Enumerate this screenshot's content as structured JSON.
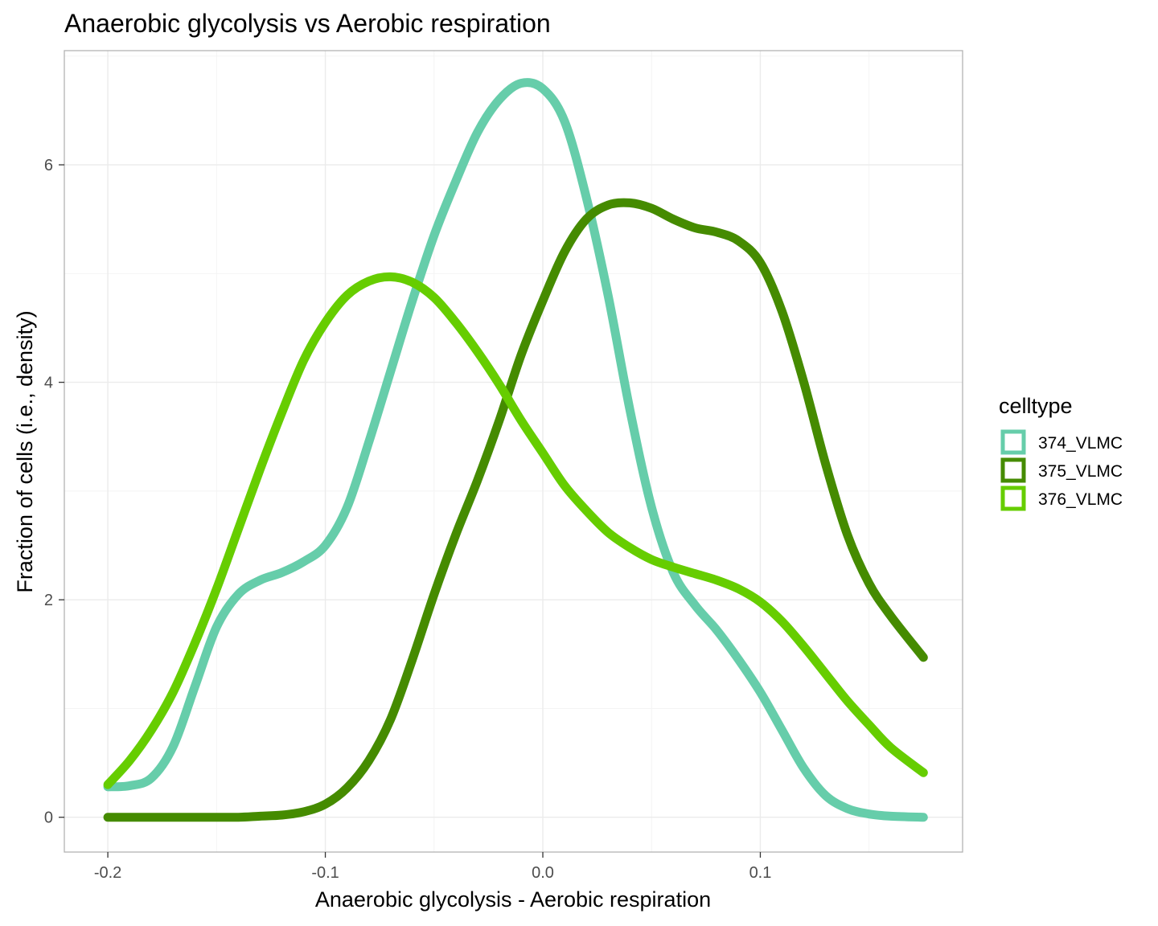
{
  "chart_data": {
    "type": "line",
    "title": "Anaerobic glycolysis vs Aerobic respiration",
    "xlabel": "Anaerobic glycolysis - Aerobic respiration",
    "ylabel": "Fraction of cells (i.e., density)",
    "xlim": [
      -0.22,
      0.193
    ],
    "ylim": [
      -0.32,
      7.05
    ],
    "x_ticks": [
      -0.2,
      -0.1,
      0.0,
      0.1
    ],
    "x_tick_labels": [
      "-0.2",
      "-0.1",
      "0.0",
      "0.1"
    ],
    "y_ticks": [
      0,
      2,
      4,
      6
    ],
    "y_tick_labels": [
      "0",
      "2",
      "4",
      "6"
    ],
    "grid": true,
    "legend": {
      "title": "celltype",
      "position": "right"
    },
    "series": [
      {
        "name": "374_VLMC",
        "color": "#66cdaa",
        "x": [
          -0.2,
          -0.19,
          -0.18,
          -0.17,
          -0.16,
          -0.15,
          -0.14,
          -0.13,
          -0.12,
          -0.11,
          -0.1,
          -0.09,
          -0.08,
          -0.07,
          -0.06,
          -0.05,
          -0.04,
          -0.03,
          -0.02,
          -0.01,
          0.0,
          0.01,
          0.02,
          0.03,
          0.04,
          0.05,
          0.06,
          0.07,
          0.08,
          0.09,
          0.1,
          0.11,
          0.12,
          0.13,
          0.14,
          0.15,
          0.16,
          0.175
        ],
        "y": [
          0.28,
          0.29,
          0.36,
          0.65,
          1.2,
          1.75,
          2.05,
          2.18,
          2.25,
          2.35,
          2.5,
          2.85,
          3.45,
          4.1,
          4.75,
          5.35,
          5.85,
          6.3,
          6.6,
          6.75,
          6.7,
          6.4,
          5.7,
          4.8,
          3.75,
          2.85,
          2.25,
          1.95,
          1.72,
          1.45,
          1.15,
          0.8,
          0.45,
          0.2,
          0.08,
          0.03,
          0.01,
          0.0
        ]
      },
      {
        "name": "375_VLMC",
        "color": "#458b00",
        "x": [
          -0.2,
          -0.19,
          -0.18,
          -0.17,
          -0.16,
          -0.15,
          -0.14,
          -0.13,
          -0.12,
          -0.11,
          -0.1,
          -0.09,
          -0.08,
          -0.07,
          -0.06,
          -0.05,
          -0.04,
          -0.03,
          -0.02,
          -0.01,
          0.0,
          0.01,
          0.02,
          0.03,
          0.04,
          0.05,
          0.06,
          0.07,
          0.08,
          0.09,
          0.1,
          0.11,
          0.12,
          0.13,
          0.14,
          0.15,
          0.16,
          0.175
        ],
        "y": [
          0.0,
          0.0,
          0.0,
          0.0,
          0.0,
          0.0,
          0.0,
          0.01,
          0.02,
          0.05,
          0.12,
          0.27,
          0.52,
          0.9,
          1.45,
          2.05,
          2.6,
          3.1,
          3.65,
          4.25,
          4.75,
          5.2,
          5.5,
          5.63,
          5.65,
          5.6,
          5.5,
          5.42,
          5.38,
          5.3,
          5.1,
          4.65,
          4.0,
          3.25,
          2.6,
          2.15,
          1.85,
          1.47
        ]
      },
      {
        "name": "376_VLMC",
        "color": "#66cd00",
        "x": [
          -0.2,
          -0.19,
          -0.18,
          -0.17,
          -0.16,
          -0.15,
          -0.14,
          -0.13,
          -0.12,
          -0.11,
          -0.1,
          -0.09,
          -0.08,
          -0.07,
          -0.06,
          -0.05,
          -0.04,
          -0.03,
          -0.02,
          -0.01,
          0.0,
          0.01,
          0.02,
          0.03,
          0.04,
          0.05,
          0.06,
          0.07,
          0.08,
          0.09,
          0.1,
          0.11,
          0.12,
          0.13,
          0.14,
          0.15,
          0.16,
          0.175
        ],
        "y": [
          0.3,
          0.52,
          0.8,
          1.15,
          1.6,
          2.1,
          2.65,
          3.2,
          3.72,
          4.2,
          4.55,
          4.8,
          4.93,
          4.97,
          4.92,
          4.78,
          4.55,
          4.28,
          3.98,
          3.65,
          3.35,
          3.05,
          2.82,
          2.62,
          2.48,
          2.37,
          2.3,
          2.24,
          2.18,
          2.1,
          1.98,
          1.8,
          1.57,
          1.32,
          1.07,
          0.85,
          0.64,
          0.41
        ]
      }
    ]
  }
}
